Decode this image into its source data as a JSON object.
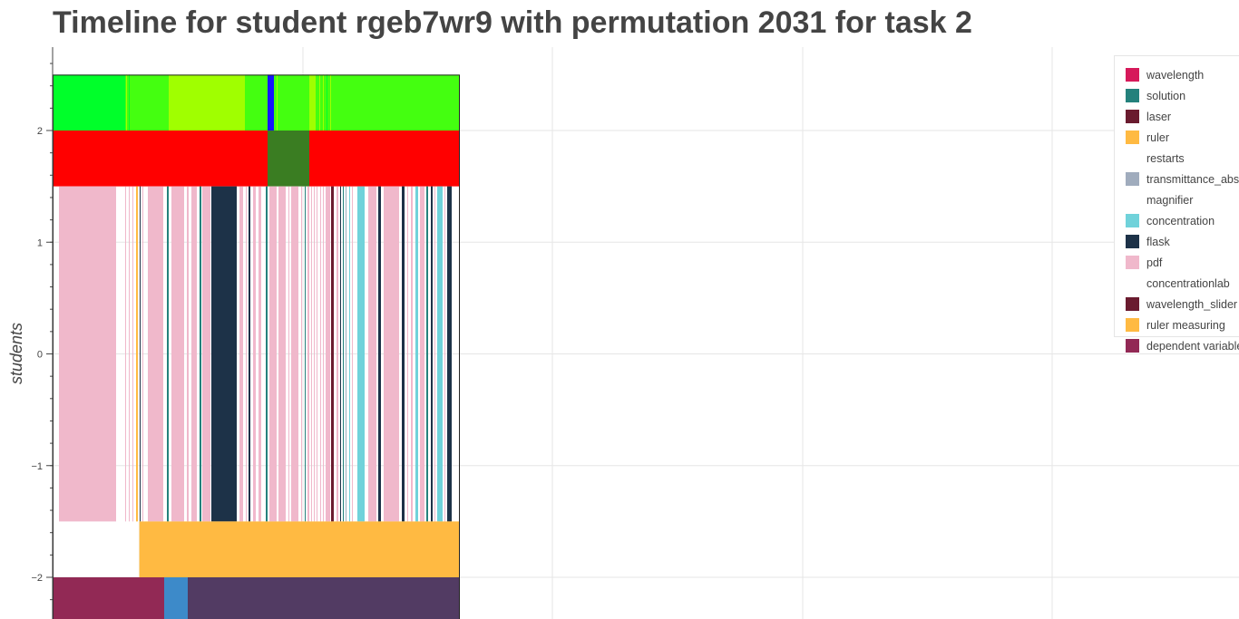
{
  "chart_data": {
    "type": "timeline",
    "title": "Timeline for student rgeb7wr9 with permutation 2031 for task 2",
    "ylabel": "students",
    "y_ticks": [
      2,
      1,
      0,
      -1,
      -2
    ],
    "y_tick_labels": [
      "2",
      "1",
      "0",
      "−1",
      "−2"
    ],
    "ylim": [
      -2.37,
      2.76
    ],
    "grid": true,
    "legend_position": "top-right",
    "legend": [
      {
        "label": "wavelength",
        "color": "#d6195a"
      },
      {
        "label": "solution",
        "color": "#24817c"
      },
      {
        "label": "laser",
        "color": "#6a1b2f"
      },
      {
        "label": "ruler",
        "color": "#ffba42"
      },
      {
        "label": "restarts",
        "color": "#ffffff"
      },
      {
        "label": "transmittance_abs",
        "color": "#a0acbd"
      },
      {
        "label": "magnifier",
        "color": "#ffffff"
      },
      {
        "label": "concentration",
        "color": "#70d2da"
      },
      {
        "label": "flask",
        "color": "#1d3248"
      },
      {
        "label": "pdf",
        "color": "#f0b8cb"
      },
      {
        "label": "concentrationlab",
        "color": "#ffffff"
      },
      {
        "label": "wavelength_slider",
        "color": "#6a1b2f"
      },
      {
        "label": "ruler measuring",
        "color": "#ffba42"
      },
      {
        "label": "dependent variable",
        "color": "#922955"
      }
    ],
    "rows": [
      {
        "y_from": 2.0,
        "y_to": 2.5,
        "segments": [
          {
            "start": 0,
            "end": 80,
            "color": "#00ff2a"
          },
          {
            "start": 80,
            "end": 128,
            "color": "#44ff10"
          },
          {
            "start": 128,
            "end": 212,
            "color": "#a0ff00"
          },
          {
            "start": 212,
            "end": 237,
            "color": "#44ff10"
          },
          {
            "start": 237,
            "end": 244,
            "color": "#1515ff"
          },
          {
            "start": 244,
            "end": 283,
            "color": "#44ff10"
          },
          {
            "start": 283,
            "end": 290,
            "color": "#a0ff00"
          },
          {
            "start": 290,
            "end": 449,
            "color": "#44ff10"
          },
          {
            "start": 81,
            "end": 82,
            "color": "#a0ff00"
          },
          {
            "start": 84,
            "end": 85,
            "color": "#00ff2a"
          },
          {
            "start": 247,
            "end": 248,
            "color": "#a0ff00"
          },
          {
            "start": 294,
            "end": 295,
            "color": "#a0ff00"
          },
          {
            "start": 298,
            "end": 299,
            "color": "#a0ff00"
          },
          {
            "start": 302,
            "end": 303,
            "color": "#00ff2a"
          },
          {
            "start": 306,
            "end": 307,
            "color": "#a0ff00"
          }
        ]
      },
      {
        "y_from": 1.5,
        "y_to": 2.0,
        "segments": [
          {
            "start": 0,
            "end": 237,
            "color": "#ff0000"
          },
          {
            "start": 237,
            "end": 283,
            "color": "#3a7d22"
          },
          {
            "start": 283,
            "end": 449,
            "color": "#ff0000"
          }
        ]
      },
      {
        "y_from": -1.5,
        "y_to": 1.5,
        "segments": [
          {
            "start": 7,
            "end": 70,
            "color": "#f0b8cb"
          },
          {
            "start": 80,
            "end": 81,
            "color": "#f0b8cb"
          },
          {
            "start": 84,
            "end": 85,
            "color": "#f0b8cb"
          },
          {
            "start": 88,
            "end": 89,
            "color": "#f0b8cb"
          },
          {
            "start": 92,
            "end": 94,
            "color": "#ffba42"
          },
          {
            "start": 96,
            "end": 97,
            "color": "#1d3248"
          },
          {
            "start": 99,
            "end": 100,
            "color": "#f0b8cb"
          },
          {
            "start": 105,
            "end": 122,
            "color": "#f0b8cb"
          },
          {
            "start": 126,
            "end": 128,
            "color": "#24817c"
          },
          {
            "start": 131,
            "end": 145,
            "color": "#f0b8cb"
          },
          {
            "start": 148,
            "end": 150,
            "color": "#f0b8cb"
          },
          {
            "start": 153,
            "end": 159,
            "color": "#f0b8cb"
          },
          {
            "start": 162,
            "end": 164,
            "color": "#24817c"
          },
          {
            "start": 165,
            "end": 174,
            "color": "#f0b8cb"
          },
          {
            "start": 175,
            "end": 203,
            "color": "#1d3248"
          },
          {
            "start": 206,
            "end": 210,
            "color": "#f0b8cb"
          },
          {
            "start": 213,
            "end": 214,
            "color": "#f0b8cb"
          },
          {
            "start": 216,
            "end": 218,
            "color": "#1d3248"
          },
          {
            "start": 221,
            "end": 224,
            "color": "#f0b8cb"
          },
          {
            "start": 227,
            "end": 230,
            "color": "#f0b8cb"
          },
          {
            "start": 235,
            "end": 237,
            "color": "#24817c"
          },
          {
            "start": 239,
            "end": 247,
            "color": "#f0b8cb"
          },
          {
            "start": 249,
            "end": 257,
            "color": "#f0b8cb"
          },
          {
            "start": 260,
            "end": 261,
            "color": "#f0b8cb"
          },
          {
            "start": 263,
            "end": 271,
            "color": "#f0b8cb"
          },
          {
            "start": 274,
            "end": 275,
            "color": "#f0b8cb"
          },
          {
            "start": 278,
            "end": 279,
            "color": "#24817c"
          },
          {
            "start": 281,
            "end": 283,
            "color": "#f0b8cb"
          },
          {
            "start": 285,
            "end": 286,
            "color": "#f0b8cb"
          },
          {
            "start": 288,
            "end": 289,
            "color": "#f0b8cb"
          },
          {
            "start": 291,
            "end": 292,
            "color": "#f0b8cb"
          },
          {
            "start": 295,
            "end": 296,
            "color": "#f0b8cb"
          },
          {
            "start": 298,
            "end": 299,
            "color": "#f0b8cb"
          },
          {
            "start": 301,
            "end": 306,
            "color": "#f0b8cb"
          },
          {
            "start": 307,
            "end": 310,
            "color": "#6a1b2f"
          },
          {
            "start": 313,
            "end": 315,
            "color": "#f0b8cb"
          },
          {
            "start": 317,
            "end": 318,
            "color": "#1d3248"
          },
          {
            "start": 320,
            "end": 321,
            "color": "#24817c"
          },
          {
            "start": 323,
            "end": 324,
            "color": "#a0acbd"
          },
          {
            "start": 327,
            "end": 328,
            "color": "#70d2da"
          },
          {
            "start": 330,
            "end": 331,
            "color": "#f0b8cb"
          },
          {
            "start": 336,
            "end": 344,
            "color": "#70d2da"
          },
          {
            "start": 348,
            "end": 357,
            "color": "#f0b8cb"
          },
          {
            "start": 359,
            "end": 362,
            "color": "#1d3248"
          },
          {
            "start": 365,
            "end": 382,
            "color": "#f0b8cb"
          },
          {
            "start": 385,
            "end": 388,
            "color": "#1d3248"
          },
          {
            "start": 391,
            "end": 392,
            "color": "#f0b8cb"
          },
          {
            "start": 395,
            "end": 397,
            "color": "#f0b8cb"
          },
          {
            "start": 400,
            "end": 403,
            "color": "#70d2da"
          },
          {
            "start": 405,
            "end": 410,
            "color": "#f0b8cb"
          },
          {
            "start": 412,
            "end": 414,
            "color": "#24817c"
          },
          {
            "start": 417,
            "end": 419,
            "color": "#1d3248"
          },
          {
            "start": 421,
            "end": 422,
            "color": "#f0b8cb"
          },
          {
            "start": 424,
            "end": 430,
            "color": "#70d2da"
          },
          {
            "start": 432,
            "end": 433,
            "color": "#f0b8cb"
          },
          {
            "start": 435,
            "end": 440,
            "color": "#1d3248"
          }
        ]
      },
      {
        "y_from": -2.0,
        "y_to": -1.5,
        "segments": [
          {
            "start": 95,
            "end": 96,
            "color": "#f7dba8"
          },
          {
            "start": 96,
            "end": 449,
            "color": "#ffba42"
          }
        ]
      },
      {
        "y_from": -2.5,
        "y_to": -2.0,
        "segments": [
          {
            "start": 0,
            "end": 123,
            "color": "#922955"
          },
          {
            "start": 123,
            "end": 149,
            "color": "#3d8ac9"
          },
          {
            "start": 149,
            "end": 449,
            "color": "#523b63"
          }
        ]
      }
    ]
  }
}
